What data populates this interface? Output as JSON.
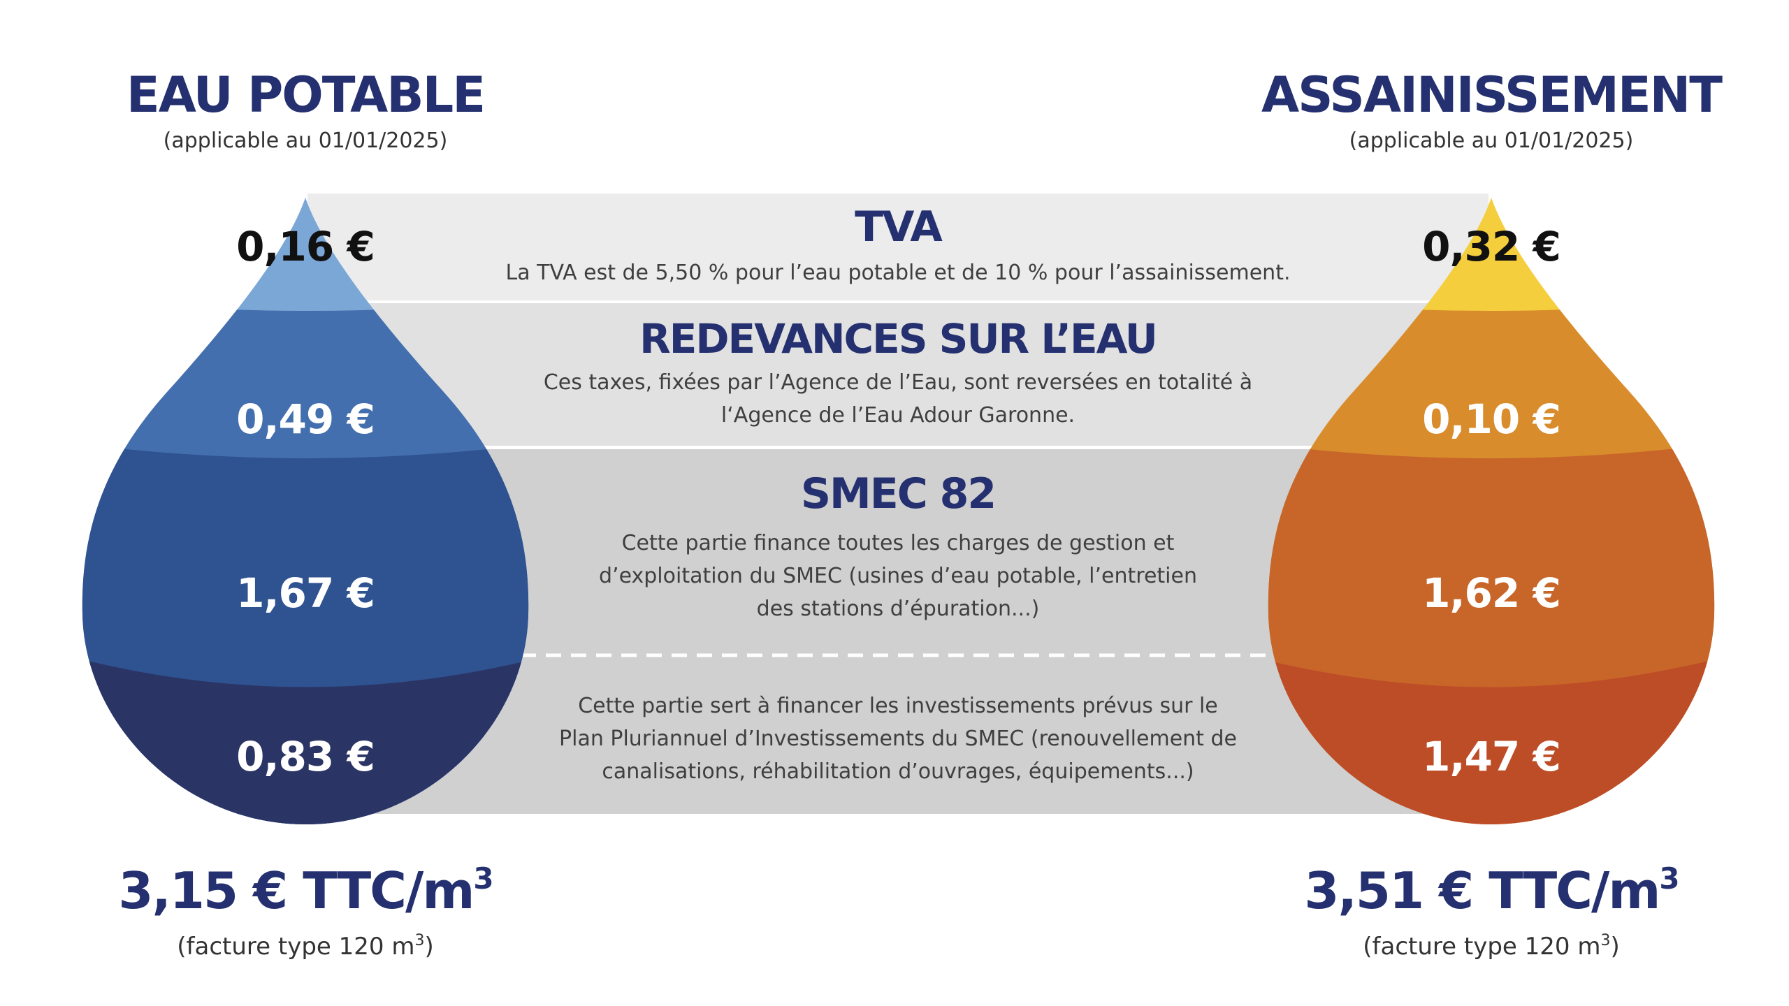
{
  "left": {
    "title": "EAU POTABLE",
    "subtitle": "(applicable au 01/01/2025)",
    "values": {
      "tva": "0,16 €",
      "redevances": "0,49 €",
      "smec_exploitation": "1,67 €",
      "smec_investissement": "0,83 €"
    },
    "total_value": "3,15 € TTC/m",
    "total_sup": "3",
    "total_note_prefix": "(facture type 120 m",
    "total_note_sup": "3",
    "total_note_suffix": ")",
    "colors": [
      "#7ba7d6",
      "#436fae",
      "#2f5291",
      "#2a3465"
    ]
  },
  "right": {
    "title": "ASSAINISSEMENT",
    "subtitle": "(applicable au 01/01/2025)",
    "values": {
      "tva": "0,32 €",
      "redevances": "0,10 €",
      "smec_exploitation": "1,62 €",
      "smec_investissement": "1,47 €"
    },
    "total_value": "3,51 € TTC/m",
    "total_sup": "3",
    "total_note_prefix": "(facture type 120 m",
    "total_note_sup": "3",
    "total_note_suffix": ")",
    "colors": [
      "#f5ce3d",
      "#d88c2c",
      "#c8662a",
      "#bd4d27"
    ]
  },
  "bands": {
    "tva": {
      "title": "TVA",
      "lines": [
        "La TVA est de 5,50 % pour l’eau potable et de 10 % pour l’assainissement."
      ]
    },
    "redevances": {
      "title": "REDEVANCES SUR L’EAU",
      "lines": [
        "Ces taxes, fixées par l’Agence de l’Eau, sont reversées en totalité à",
        "l‘Agence de l’Eau Adour Garonne."
      ]
    },
    "smec": {
      "title": "SMEC 82",
      "lines": [
        "Cette partie finance toutes les charges de gestion et",
        "d’exploitation du SMEC (usines d’eau potable, l’entretien",
        "des stations d’épuration...)"
      ]
    },
    "investissement": {
      "lines": [
        "Cette partie sert à financer les investissements prévus sur le",
        "Plan Pluriannuel d’Investissements du SMEC (renouvellement de",
        "canalisations, réhabilitation d’ouvrages, équipements...)"
      ]
    }
  },
  "band_colors": [
    "#ececec",
    "#e1e1e1",
    "#d0d0d0",
    "#d0d0d0"
  ]
}
